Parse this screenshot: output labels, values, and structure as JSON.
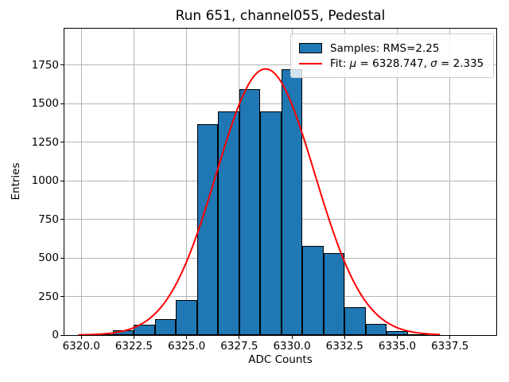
{
  "chart_data": {
    "type": "bar",
    "subtype": "histogram",
    "title": "Run 651, channel055, Pedestal",
    "xlabel": "ADC Counts",
    "ylabel": "Entries",
    "grid": true,
    "legend_position": "upper right",
    "legend_entries": [
      "Samples: RMS=2.25",
      "Fit: μ = 6328.747, σ = 2.335"
    ],
    "bin_width": 1,
    "bin_centers": [
      6321,
      6322,
      6323,
      6324,
      6325,
      6326,
      6327,
      6328,
      6329,
      6330,
      6331,
      6332,
      6333,
      6334,
      6335,
      6336
    ],
    "values": [
      5,
      30,
      68,
      105,
      228,
      1368,
      1448,
      1595,
      1448,
      1721,
      580,
      533,
      178,
      72,
      25,
      5
    ],
    "xlim": [
      6319.2,
      6339.7
    ],
    "ylim": [
      0,
      1986
    ],
    "xtick_values": [
      6320.0,
      6322.5,
      6325.0,
      6327.5,
      6330.0,
      6332.5,
      6335.0,
      6337.5
    ],
    "xtick_labels": [
      "6320.0",
      "6322.5",
      "6325.0",
      "6327.5",
      "6330.0",
      "6332.5",
      "6335.0",
      "6337.5"
    ],
    "ytick_values": [
      0,
      250,
      500,
      750,
      1000,
      1250,
      1500,
      1750
    ],
    "ytick_labels": [
      "0",
      "250",
      "500",
      "750",
      "1000",
      "1250",
      "1500",
      "1750"
    ],
    "bar_color": "#1f77b4",
    "bar_edge_color": "#000000",
    "grid_color": "#b4b4b4",
    "fit": {
      "mu": 6328.747,
      "sigma": 2.335,
      "amplitude": 1725,
      "color": "#ff0000",
      "x_range": [
        6319.9,
        6337.0
      ]
    }
  },
  "legend_display": {
    "samples_label": "Samples: RMS=2.25",
    "fit_pre": "Fit: ",
    "fit_mu_symbol": "μ",
    "fit_mu_value": " = 6328.747, ",
    "fit_sigma_symbol": "σ",
    "fit_sigma_value": " = 2.335"
  }
}
